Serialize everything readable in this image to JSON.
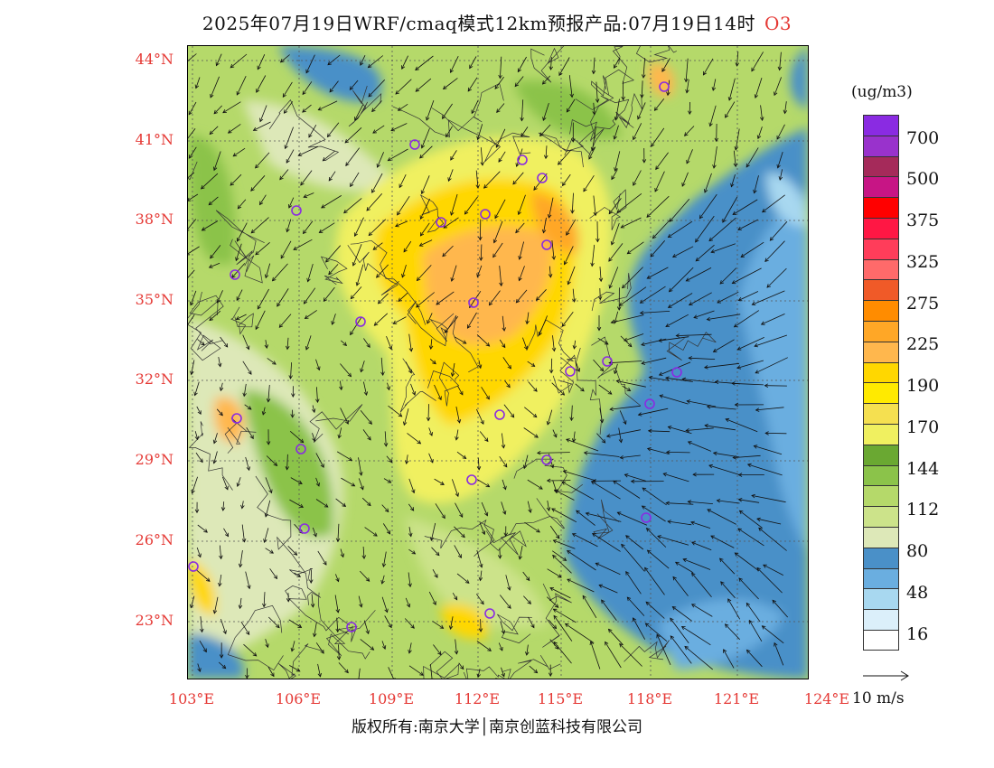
{
  "title": "2025年07月19日WRF/cmaq模式12km预报产品:07月19日14时",
  "species": "O3",
  "lat_ticks": [
    "44°N",
    "41°N",
    "38°N",
    "35°N",
    "32°N",
    "29°N",
    "26°N",
    "23°N"
  ],
  "lon_ticks": [
    "103°E",
    "106°E",
    "109°E",
    "112°E",
    "115°E",
    "118°E",
    "121°E",
    "124°E"
  ],
  "colorbar": {
    "unit": "(ug/m3)",
    "labels": [
      "700",
      "500",
      "375",
      "325",
      "275",
      "225",
      "190",
      "170",
      "144",
      "112",
      "80",
      "48",
      "16"
    ],
    "colors": [
      "#8a2be2",
      "#9932cc",
      "#a52a5a",
      "#c71585",
      "#ff0000",
      "#ff1744",
      "#ff3d5a",
      "#ff6a6a",
      "#f05a28",
      "#ff8c00",
      "#ffa726",
      "#ffb74d",
      "#ffd700",
      "#ffea00",
      "#f5e050",
      "#f0f060",
      "#6aa832",
      "#8bc34a",
      "#b5d96a",
      "#cce38a",
      "#dde8b8",
      "#4a90c8",
      "#6aaee0",
      "#a8d8f0",
      "#dbeffa",
      "#ffffff"
    ]
  },
  "wind_reference": "10 m/s",
  "copyright": "版权所有:南京大学│南京创蓝科技有限公司",
  "station_markers": 27
}
